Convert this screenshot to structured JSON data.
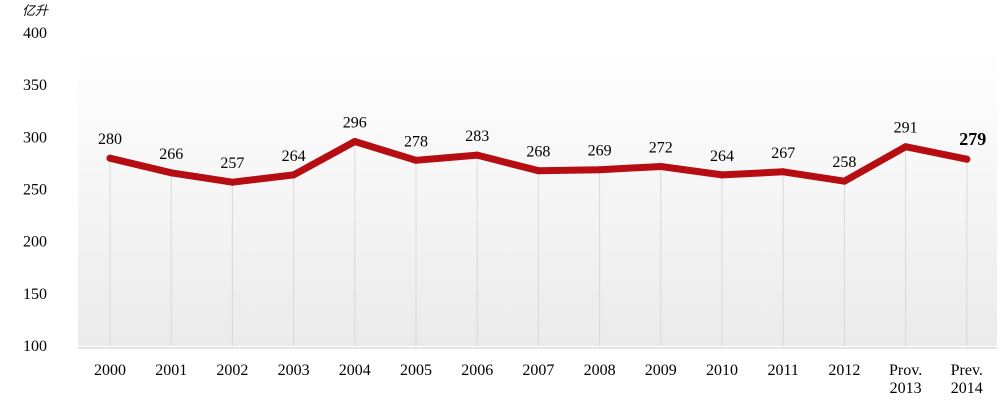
{
  "chart_data": {
    "type": "line",
    "unit_label": "亿升",
    "categories": [
      [
        "2000"
      ],
      [
        "2001"
      ],
      [
        "2002"
      ],
      [
        "2003"
      ],
      [
        "2004"
      ],
      [
        "2005"
      ],
      [
        "2006"
      ],
      [
        "2007"
      ],
      [
        "2008"
      ],
      [
        "2009"
      ],
      [
        "2010"
      ],
      [
        "2011"
      ],
      [
        "2012"
      ],
      [
        "Prov.",
        "2013"
      ],
      [
        "Prev.",
        "2014"
      ]
    ],
    "values": [
      280,
      266,
      257,
      264,
      296,
      278,
      283,
      268,
      269,
      272,
      264,
      267,
      258,
      291,
      279
    ],
    "data_labels": [
      "280",
      "266",
      "257",
      "264",
      "296",
      "278",
      "283",
      "268",
      "269",
      "272",
      "264",
      "267",
      "258",
      "291",
      "279"
    ],
    "highlighted_label_index": 14,
    "ylim": [
      100,
      400
    ],
    "yticks": [
      100,
      150,
      200,
      250,
      300,
      350,
      400
    ],
    "line_color": "#b50d12",
    "gridlines": "vertical",
    "title": "",
    "xlabel": "",
    "ylabel": ""
  }
}
